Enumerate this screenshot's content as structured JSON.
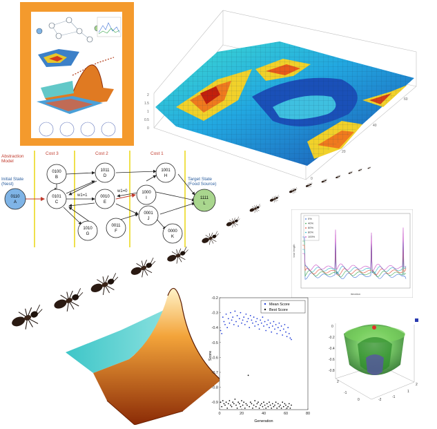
{
  "diagram": {
    "abstraction_label": "Abstraction Model",
    "cost_labels": [
      "Cost 3",
      "Cost 2",
      "Cost 1"
    ],
    "initial_state": {
      "label": "Initial State (Nest)",
      "code": "0110",
      "letter": "A"
    },
    "target_state": {
      "label": "Target State (Food Source)",
      "code": "1111",
      "letter": "L"
    },
    "nodes": [
      {
        "code": "0100",
        "letter": "B"
      },
      {
        "code": "0101",
        "letter": "C"
      },
      {
        "code": "1010",
        "letter": "G"
      },
      {
        "code": "1011",
        "letter": "D"
      },
      {
        "code": "0010",
        "letter": "E"
      },
      {
        "code": "0011",
        "letter": "F"
      },
      {
        "code": "1001",
        "letter": "H"
      },
      {
        "code": "1000",
        "letter": "I"
      },
      {
        "code": "0001",
        "letter": "J"
      },
      {
        "code": "0000",
        "letter": "K"
      }
    ],
    "edge_labels": [
      "w1=1",
      "w1=0"
    ]
  },
  "chart_data": [
    {
      "type": "scatter",
      "title": "",
      "xlabel": "Generation",
      "ylabel": "Score",
      "xlim": [
        0,
        80
      ],
      "ylim": [
        -0.95,
        -0.2
      ],
      "x_ticks": [
        "0",
        "20",
        "40",
        "60",
        "80"
      ],
      "y_ticks": [
        "-0.2",
        "-0.3",
        "-0.4",
        "-0.5",
        "-0.6",
        "-0.7",
        "-0.8",
        "-0.9"
      ],
      "legend_position": "top-right",
      "series": [
        {
          "name": "Mean Score",
          "color": "#1f3bd6",
          "x": [
            1,
            2,
            3,
            4,
            5,
            6,
            7,
            8,
            9,
            10,
            11,
            12,
            13,
            14,
            15,
            16,
            17,
            18,
            19,
            20,
            21,
            22,
            23,
            24,
            25,
            26,
            27,
            28,
            29,
            30,
            31,
            32,
            33,
            34,
            35,
            36,
            37,
            38,
            39,
            40,
            41,
            42,
            43,
            44,
            45,
            46,
            47,
            48,
            49,
            50,
            51,
            52,
            53,
            54,
            55,
            56,
            57,
            58,
            59,
            60,
            61,
            62,
            63,
            64,
            65
          ],
          "y": [
            -0.42,
            -0.44,
            -0.33,
            -0.36,
            -0.38,
            -0.31,
            -0.4,
            -0.34,
            -0.37,
            -0.3,
            -0.35,
            -0.33,
            -0.38,
            -0.29,
            -0.36,
            -0.32,
            -0.39,
            -0.34,
            -0.3,
            -0.37,
            -0.35,
            -0.33,
            -0.38,
            -0.31,
            -0.36,
            -0.34,
            -0.4,
            -0.32,
            -0.35,
            -0.37,
            -0.33,
            -0.39,
            -0.36,
            -0.34,
            -0.38,
            -0.41,
            -0.35,
            -0.37,
            -0.33,
            -0.39,
            -0.36,
            -0.42,
            -0.38,
            -0.35,
            -0.4,
            -0.37,
            -0.43,
            -0.39,
            -0.36,
            -0.41,
            -0.38,
            -0.44,
            -0.4,
            -0.37,
            -0.42,
            -0.39,
            -0.45,
            -0.41,
            -0.38,
            -0.43,
            -0.46,
            -0.4,
            -0.44,
            -0.47,
            -0.48
          ]
        },
        {
          "name": "Best Score",
          "color": "#111111",
          "x": [
            1,
            2,
            3,
            4,
            5,
            6,
            7,
            8,
            9,
            10,
            11,
            12,
            13,
            14,
            15,
            16,
            17,
            18,
            19,
            20,
            21,
            22,
            23,
            24,
            25,
            26,
            27,
            28,
            29,
            30,
            31,
            32,
            33,
            34,
            35,
            36,
            37,
            38,
            39,
            40,
            41,
            42,
            43,
            44,
            45,
            46,
            47,
            48,
            49,
            50,
            51,
            52,
            53,
            54,
            55,
            56,
            57,
            58,
            59,
            60,
            61,
            62,
            63,
            64,
            65
          ],
          "y": [
            -0.9,
            -0.93,
            -0.89,
            -0.91,
            -0.92,
            -0.9,
            -0.94,
            -0.91,
            -0.89,
            -0.92,
            -0.93,
            -0.9,
            -0.91,
            -0.88,
            -0.92,
            -0.94,
            -0.9,
            -0.91,
            -0.93,
            -0.89,
            -0.92,
            -0.9,
            -0.94,
            -0.91,
            -0.92,
            -0.72,
            -0.93,
            -0.9,
            -0.91,
            -0.94,
            -0.92,
            -0.89,
            -0.93,
            -0.91,
            -0.9,
            -0.94,
            -0.92,
            -0.91,
            -0.93,
            -0.9,
            -0.92,
            -0.94,
            -0.91,
            -0.93,
            -0.9,
            -0.92,
            -0.94,
            -0.91,
            -0.93,
            -0.92,
            -0.9,
            -0.94,
            -0.91,
            -0.93,
            -0.92,
            -0.94,
            -0.9,
            -0.93,
            -0.91,
            -0.92,
            -0.94,
            -0.93,
            -0.91,
            -0.94,
            -0.92
          ]
        }
      ]
    },
    {
      "type": "line",
      "title": "",
      "xlabel": "iteration",
      "ylabel": "tour length",
      "legend_position": "top-left",
      "series": [
        {
          "name": "0%",
          "color": "#3b6fd6"
        },
        {
          "name": "40%",
          "color": "#3aa64c"
        },
        {
          "name": "60%",
          "color": "#e0452f"
        },
        {
          "name": "80%",
          "color": "#25b0c0"
        },
        {
          "name": "100%",
          "color": "#c447c4"
        }
      ]
    }
  ],
  "colors": {
    "orange_frame": "#f49a2d",
    "node_fill": "#ffffff",
    "initial_fill": "#7fb4e6",
    "target_fill": "#a9d68e",
    "divider": "#e8d200",
    "label_red": "#c0392b",
    "label_blue": "#2a5d9e"
  }
}
